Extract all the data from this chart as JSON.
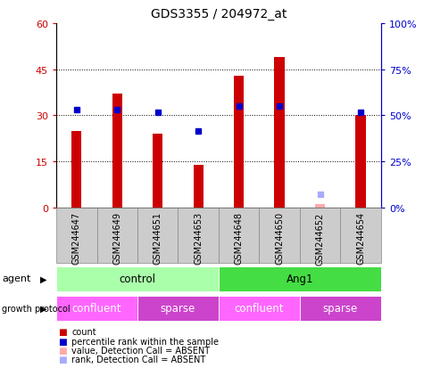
{
  "title": "GDS3355 / 204972_at",
  "samples": [
    "GSM244647",
    "GSM244649",
    "GSM244651",
    "GSM244653",
    "GSM244648",
    "GSM244650",
    "GSM244652",
    "GSM244654"
  ],
  "count_values": [
    25,
    37,
    24,
    14,
    43,
    49,
    null,
    30
  ],
  "rank_values": [
    32,
    32,
    31,
    25,
    33,
    33,
    null,
    31
  ],
  "absent_count": [
    null,
    null,
    null,
    null,
    null,
    null,
    1.0,
    null
  ],
  "absent_rank": [
    null,
    null,
    null,
    null,
    null,
    null,
    4.2,
    null
  ],
  "ylim_left": [
    0,
    60
  ],
  "ylim_right": [
    0,
    100
  ],
  "yticks_left": [
    0,
    15,
    30,
    45,
    60
  ],
  "yticks_right": [
    0,
    25,
    50,
    75,
    100
  ],
  "ytick_labels_left": [
    "0",
    "15",
    "30",
    "45",
    "60"
  ],
  "ytick_labels_right": [
    "0%",
    "25%",
    "50%",
    "75%",
    "100%"
  ],
  "bar_color": "#cc0000",
  "rank_color": "#0000cc",
  "absent_bar_color": "#ffaaaa",
  "absent_rank_color": "#aaaaff",
  "agent_groups": [
    {
      "label": "control",
      "start": 0,
      "end": 4,
      "color": "#aaffaa"
    },
    {
      "label": "Ang1",
      "start": 4,
      "end": 8,
      "color": "#44dd44"
    }
  ],
  "growth_groups": [
    {
      "label": "confluent",
      "start": 0,
      "end": 2,
      "color": "#ff66ff"
    },
    {
      "label": "sparse",
      "start": 2,
      "end": 4,
      "color": "#cc44cc"
    },
    {
      "label": "confluent",
      "start": 4,
      "end": 6,
      "color": "#ff66ff"
    },
    {
      "label": "sparse",
      "start": 6,
      "end": 8,
      "color": "#cc44cc"
    }
  ],
  "legend_items": [
    {
      "label": "count",
      "color": "#cc0000"
    },
    {
      "label": "percentile rank within the sample",
      "color": "#0000cc"
    },
    {
      "label": "value, Detection Call = ABSENT",
      "color": "#ffaaaa"
    },
    {
      "label": "rank, Detection Call = ABSENT",
      "color": "#aaaaff"
    }
  ],
  "tick_color_left": "#cc0000",
  "tick_color_right": "#0000cc",
  "bar_width": 0.25,
  "rank_marker_size": 5
}
